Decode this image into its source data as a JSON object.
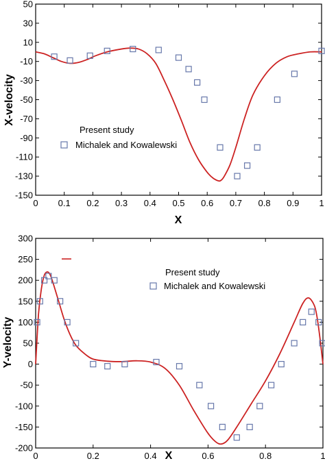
{
  "chart_data": [
    {
      "type": "line",
      "xlabel": "X",
      "ylabel": "X-velocity",
      "xlim": [
        0,
        1
      ],
      "ylim": [
        -150,
        50
      ],
      "x_ticks": [
        "0",
        "0.1",
        "0.2",
        "0.3",
        "0.4",
        "0.5",
        "0.6",
        "0.7",
        "0.8",
        "0.9",
        "1"
      ],
      "y_ticks": [
        "50",
        "30",
        "10",
        "-10",
        "-30",
        "-50",
        "-70",
        "-90",
        "-110",
        "-130",
        "-150"
      ],
      "grid": false,
      "legend_position": "center-left",
      "series": [
        {
          "name": "Present study",
          "style": "line",
          "color": "#cc2222",
          "x": [
            0,
            0.03,
            0.06,
            0.09,
            0.12,
            0.15,
            0.18,
            0.21,
            0.25,
            0.3,
            0.33,
            0.36,
            0.39,
            0.42,
            0.45,
            0.48,
            0.51,
            0.54,
            0.57,
            0.6,
            0.62,
            0.64,
            0.65,
            0.66,
            0.68,
            0.7,
            0.73,
            0.76,
            0.8,
            0.84,
            0.88,
            0.92,
            0.96,
            1
          ],
          "y": [
            0,
            -2,
            -6,
            -10,
            -12,
            -11,
            -8,
            -4,
            0,
            3,
            4,
            3,
            -2,
            -12,
            -30,
            -50,
            -72,
            -95,
            -113,
            -126,
            -132,
            -135,
            -134,
            -130,
            -118,
            -100,
            -70,
            -45,
            -25,
            -12,
            -5,
            -2,
            0,
            0
          ]
        },
        {
          "name": "Michalek and Kowalewski",
          "style": "marker",
          "color": "#6677aa",
          "x": [
            0.065,
            0.12,
            0.19,
            0.25,
            0.34,
            0.43,
            0.5,
            0.535,
            0.565,
            0.59,
            0.645,
            0.705,
            0.74,
            0.775,
            0.845,
            0.905,
            1
          ],
          "y": [
            -5,
            -9,
            -4,
            1,
            3,
            2,
            -6,
            -18,
            -32,
            -50,
            -100,
            -130,
            -119,
            -100,
            -50,
            -23,
            1
          ]
        }
      ]
    },
    {
      "type": "line",
      "xlabel": "X",
      "ylabel": "Y-velocity",
      "xlim": [
        0,
        1
      ],
      "ylim": [
        -200,
        300
      ],
      "x_ticks": [
        "0",
        "0.2",
        "0.4",
        "0.6",
        "0.8",
        "1"
      ],
      "y_ticks": [
        "300",
        "250",
        "200",
        "150",
        "100",
        "50",
        "0",
        "-50",
        "-100",
        "-150",
        "-200"
      ],
      "grid": false,
      "legend_position": "top-right",
      "series": [
        {
          "name": "Present study",
          "style": "line",
          "color": "#cc2222",
          "x": [
            0,
            0.01,
            0.02,
            0.03,
            0.04,
            0.05,
            0.06,
            0.08,
            0.1,
            0.12,
            0.14,
            0.17,
            0.2,
            0.25,
            0.3,
            0.35,
            0.4,
            0.45,
            0.5,
            0.55,
            0.6,
            0.63,
            0.65,
            0.67,
            0.7,
            0.75,
            0.8,
            0.85,
            0.9,
            0.93,
            0.95,
            0.97,
            0.98,
            0.99,
            1
          ],
          "y": [
            0,
            120,
            180,
            212,
            220,
            214,
            195,
            150,
            105,
            70,
            45,
            25,
            12,
            7,
            6,
            8,
            5,
            -10,
            -50,
            -110,
            -165,
            -187,
            -190,
            -180,
            -150,
            -95,
            -40,
            25,
            100,
            145,
            158,
            140,
            110,
            60,
            0
          ]
        },
        {
          "name": "Michalek and Kowalewski",
          "style": "marker",
          "color": "#6677aa",
          "x": [
            0.005,
            0.015,
            0.03,
            0.045,
            0.065,
            0.085,
            0.11,
            0.14,
            0.2,
            0.25,
            0.31,
            0.42,
            0.5,
            0.57,
            0.61,
            0.65,
            0.7,
            0.745,
            0.78,
            0.82,
            0.855,
            0.9,
            0.93,
            0.96,
            0.985,
            0.998
          ],
          "y": [
            100,
            150,
            200,
            210,
            200,
            150,
            100,
            50,
            0,
            -5,
            0,
            5,
            -5,
            -50,
            -100,
            -150,
            -175,
            -150,
            -100,
            -50,
            0,
            50,
            100,
            125,
            100,
            50
          ]
        }
      ]
    }
  ]
}
